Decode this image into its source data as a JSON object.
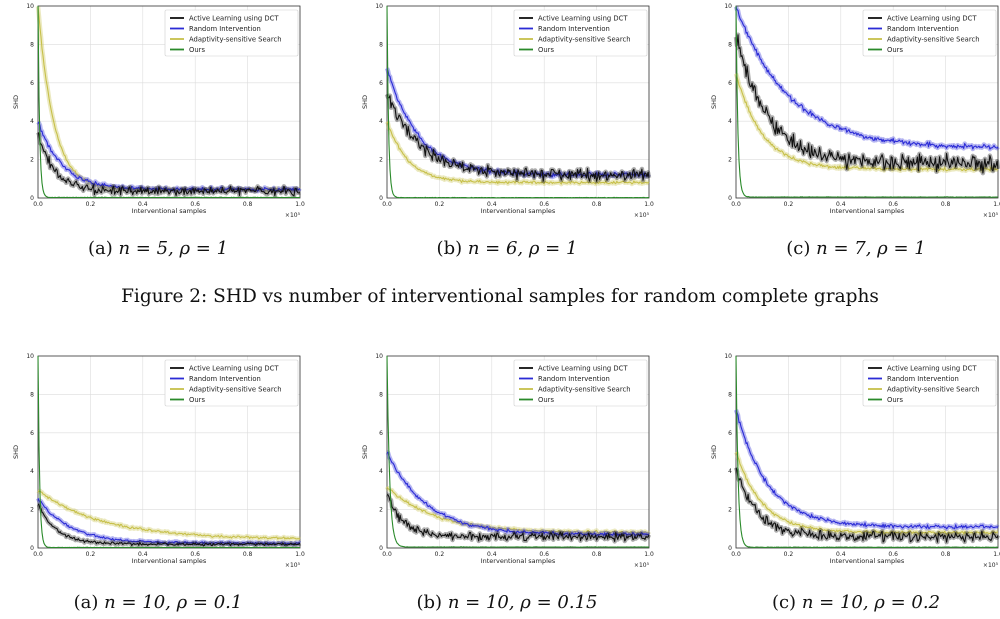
{
  "figure_caption": "Figure 2: SHD vs number of interventional samples for random complete graphs",
  "colors": {
    "active": "#111111",
    "random": "#2b2bd6",
    "adaptive": "#c7c04a",
    "ours": "#2a8a2a"
  },
  "chart_data": [
    {
      "type": "line",
      "caption_label": "(a)",
      "caption_math": "n = 5, ρ = 1",
      "xlabel": "Interventional samples",
      "ylabel": "SHD",
      "x_multiplier": "×10⁵",
      "xlim": [
        0,
        1.0
      ],
      "ylim": [
        0,
        10
      ],
      "xticks": [
        "0.0",
        "0.2",
        "0.4",
        "0.6",
        "0.8",
        "1.0"
      ],
      "yticks": [
        "0",
        "2",
        "4",
        "6",
        "8",
        "10"
      ],
      "legend": [
        "Active Learning using DCT",
        "Random Intervention",
        "Adaptivity-sensitive Search",
        "Ours"
      ],
      "series": [
        {
          "name": "Active Learning using DCT",
          "key": "active",
          "start": 3.5,
          "end": 0.35,
          "decay": 0.06,
          "noise": 0.18
        },
        {
          "name": "Random Intervention",
          "key": "random",
          "start": 4.0,
          "end": 0.45,
          "decay": 0.09,
          "noise": 0.08
        },
        {
          "name": "Adaptivity-sensitive Search",
          "key": "adaptive",
          "start": 10.0,
          "end": 0.45,
          "decay": 0.06,
          "noise": 0.05
        },
        {
          "name": "Ours",
          "key": "ours",
          "start": 10.0,
          "end": 0.03,
          "decay": 0.006,
          "noise": 0.01
        }
      ]
    },
    {
      "type": "line",
      "caption_label": "(b)",
      "caption_math": "n = 6, ρ = 1",
      "xlabel": "Interventional samples",
      "ylabel": "SHD",
      "x_multiplier": "×10⁵",
      "xlim": [
        0,
        1.0
      ],
      "ylim": [
        0,
        10
      ],
      "xticks": [
        "0.0",
        "0.2",
        "0.4",
        "0.6",
        "0.8",
        "1.0"
      ],
      "yticks": [
        "0",
        "2",
        "4",
        "6",
        "8",
        "10"
      ],
      "legend": [
        "Active Learning using DCT",
        "Random Intervention",
        "Adaptivity-sensitive Search",
        "Ours"
      ],
      "series": [
        {
          "name": "Active Learning using DCT",
          "key": "active",
          "start": 5.5,
          "end": 1.2,
          "decay": 0.12,
          "noise": 0.25
        },
        {
          "name": "Random Intervention",
          "key": "random",
          "start": 6.8,
          "end": 1.2,
          "decay": 0.12,
          "noise": 0.1
        },
        {
          "name": "Adaptivity-sensitive Search",
          "key": "adaptive",
          "start": 4.0,
          "end": 0.8,
          "decay": 0.08,
          "noise": 0.06
        },
        {
          "name": "Ours",
          "key": "ours",
          "start": 10.0,
          "end": 0.02,
          "decay": 0.006,
          "noise": 0.01
        }
      ]
    },
    {
      "type": "line",
      "caption_label": "(c)",
      "caption_math": "n = 7, ρ = 1",
      "xlabel": "Interventional samples",
      "ylabel": "SHD",
      "x_multiplier": "×10⁵",
      "xlim": [
        0,
        1.0
      ],
      "ylim": [
        0,
        10
      ],
      "xticks": [
        "0.0",
        "0.2",
        "0.4",
        "0.6",
        "0.8",
        "1.0"
      ],
      "yticks": [
        "0",
        "2",
        "4",
        "6",
        "8",
        "10"
      ],
      "legend": [
        "Active Learning using DCT",
        "Random Intervention",
        "Adaptivity-sensitive Search",
        "Ours"
      ],
      "series": [
        {
          "name": "Active Learning using DCT",
          "key": "active",
          "start": 8.5,
          "end": 1.8,
          "decay": 0.12,
          "noise": 0.35
        },
        {
          "name": "Random Intervention",
          "key": "random",
          "start": 10.0,
          "end": 2.6,
          "decay": 0.2,
          "noise": 0.1
        },
        {
          "name": "Adaptivity-sensitive Search",
          "key": "adaptive",
          "start": 6.5,
          "end": 1.5,
          "decay": 0.1,
          "noise": 0.07
        },
        {
          "name": "Ours",
          "key": "ours",
          "start": 10.0,
          "end": 0.05,
          "decay": 0.007,
          "noise": 0.01
        }
      ]
    },
    {
      "type": "line",
      "caption_label": "(a)",
      "caption_math": "n = 10, ρ = 0.1",
      "xlabel": "Interventional samples",
      "ylabel": "SHD",
      "x_multiplier": "×10⁵",
      "xlim": [
        0,
        1.0
      ],
      "ylim": [
        0,
        10
      ],
      "xticks": [
        "0.0",
        "0.2",
        "0.4",
        "0.6",
        "0.8",
        "1.0"
      ],
      "yticks": [
        "0",
        "2",
        "4",
        "6",
        "8",
        "10"
      ],
      "legend": [
        "Active Learning using DCT",
        "Random Intervention",
        "Adaptivity-sensitive Search",
        "Ours"
      ],
      "series": [
        {
          "name": "Active Learning using DCT",
          "key": "active",
          "start": 2.3,
          "end": 0.2,
          "decay": 0.07,
          "noise": 0.06
        },
        {
          "name": "Random Intervention",
          "key": "random",
          "start": 2.6,
          "end": 0.25,
          "decay": 0.12,
          "noise": 0.05
        },
        {
          "name": "Adaptivity-sensitive Search",
          "key": "adaptive",
          "start": 3.0,
          "end": 0.45,
          "decay": 0.25,
          "noise": 0.05
        },
        {
          "name": "Ours",
          "key": "ours",
          "start": 10.0,
          "end": 0.03,
          "decay": 0.006,
          "noise": 0.01
        }
      ]
    },
    {
      "type": "line",
      "caption_label": "(b)",
      "caption_math": "n = 10, ρ = 0.15",
      "xlabel": "Interventional samples",
      "ylabel": "SHD",
      "x_multiplier": "×10⁵",
      "xlim": [
        0,
        1.0
      ],
      "ylim": [
        0,
        10
      ],
      "xticks": [
        "0.0",
        "0.2",
        "0.4",
        "0.6",
        "0.8",
        "1.0"
      ],
      "yticks": [
        "0",
        "2",
        "4",
        "6",
        "8",
        "10"
      ],
      "legend": [
        "Active Learning using DCT",
        "Random Intervention",
        "Adaptivity-sensitive Search",
        "Ours"
      ],
      "series": [
        {
          "name": "Active Learning using DCT",
          "key": "active",
          "start": 2.8,
          "end": 0.6,
          "decay": 0.06,
          "noise": 0.18
        },
        {
          "name": "Random Intervention",
          "key": "random",
          "start": 5.0,
          "end": 0.7,
          "decay": 0.15,
          "noise": 0.07
        },
        {
          "name": "Adaptivity-sensitive Search",
          "key": "adaptive",
          "start": 3.2,
          "end": 0.8,
          "decay": 0.18,
          "noise": 0.06
        },
        {
          "name": "Ours",
          "key": "ours",
          "start": 10.0,
          "end": 0.05,
          "decay": 0.01,
          "noise": 0.01
        }
      ]
    },
    {
      "type": "line",
      "caption_label": "(c)",
      "caption_math": "n = 10, ρ = 0.2",
      "xlabel": "Interventional samples",
      "ylabel": "SHD",
      "x_multiplier": "×10⁵",
      "xlim": [
        0,
        1.0
      ],
      "ylim": [
        0,
        10
      ],
      "xticks": [
        "0.0",
        "0.2",
        "0.4",
        "0.6",
        "0.8",
        "1.0"
      ],
      "yticks": [
        "0",
        "2",
        "4",
        "6",
        "8",
        "10"
      ],
      "legend": [
        "Active Learning using DCT",
        "Random Intervention",
        "Adaptivity-sensitive Search",
        "Ours"
      ],
      "series": [
        {
          "name": "Active Learning using DCT",
          "key": "active",
          "start": 4.2,
          "end": 0.6,
          "decay": 0.08,
          "noise": 0.2
        },
        {
          "name": "Random Intervention",
          "key": "random",
          "start": 7.2,
          "end": 1.1,
          "decay": 0.12,
          "noise": 0.08
        },
        {
          "name": "Adaptivity-sensitive Search",
          "key": "adaptive",
          "start": 5.0,
          "end": 0.8,
          "decay": 0.1,
          "noise": 0.06
        },
        {
          "name": "Ours",
          "key": "ours",
          "start": 10.0,
          "end": 0.04,
          "decay": 0.008,
          "noise": 0.01
        }
      ]
    }
  ]
}
